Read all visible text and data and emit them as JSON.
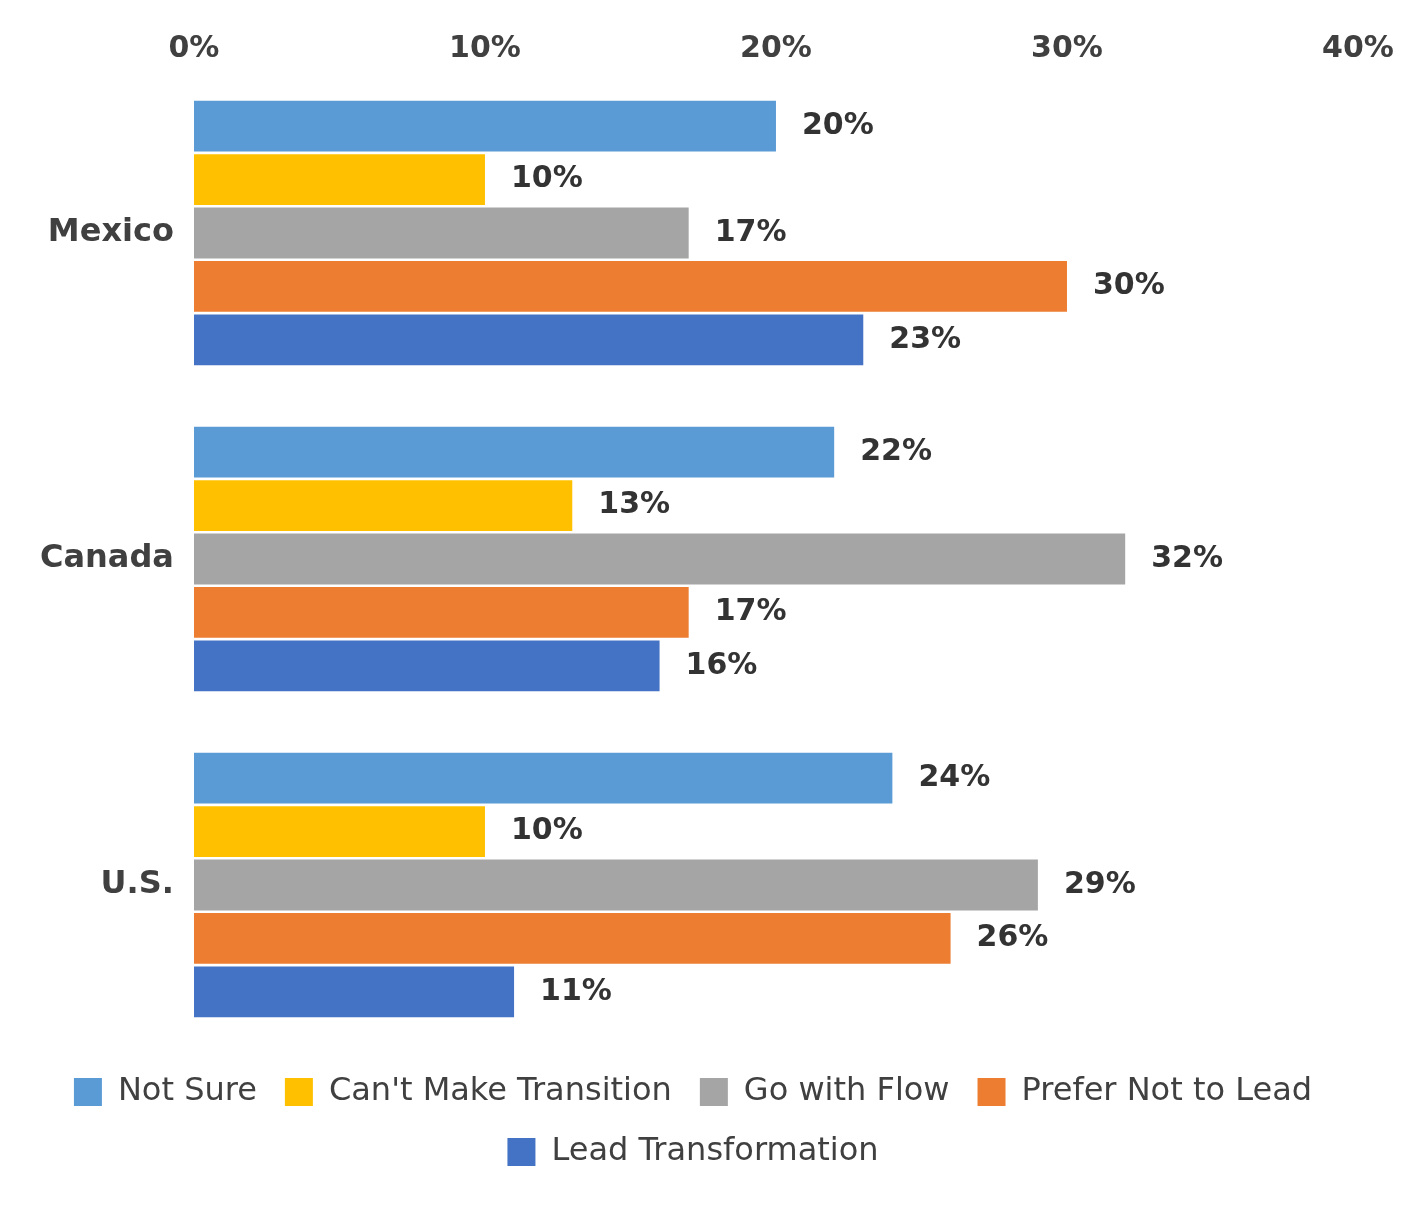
{
  "chart_data": {
    "type": "bar",
    "orientation": "horizontal",
    "categories": [
      "Mexico",
      "Canada",
      "U.S."
    ],
    "series": [
      {
        "name": "Not Sure",
        "color": "#5b9bd5",
        "values": [
          20,
          22,
          24
        ],
        "value_labels": [
          "20%",
          "22%",
          "24%"
        ]
      },
      {
        "name": "Can't Make Transition",
        "color": "#ffc000",
        "values": [
          10,
          13,
          10
        ],
        "value_labels": [
          "10%",
          "13%",
          "10%"
        ]
      },
      {
        "name": "Go with Flow",
        "color": "#a5a5a5",
        "values": [
          17,
          32,
          29
        ],
        "value_labels": [
          "17%",
          "32%",
          "29%"
        ]
      },
      {
        "name": "Prefer Not to Lead",
        "color": "#ed7d31",
        "values": [
          30,
          17,
          26
        ],
        "value_labels": [
          "30%",
          "17%",
          "26%"
        ]
      },
      {
        "name": "Lead Transformation",
        "color": "#4472c4",
        "values": [
          23,
          16,
          11
        ],
        "value_labels": [
          "23%",
          "16%",
          "11%"
        ]
      }
    ],
    "xlim": [
      0,
      40
    ],
    "xticks": [
      {
        "value": 0,
        "label": "0%"
      },
      {
        "value": 10,
        "label": "10%"
      },
      {
        "value": 20,
        "label": "20%"
      },
      {
        "value": 30,
        "label": "30%"
      },
      {
        "value": 40,
        "label": "40%"
      }
    ],
    "grid": false,
    "legend": "bottom"
  }
}
